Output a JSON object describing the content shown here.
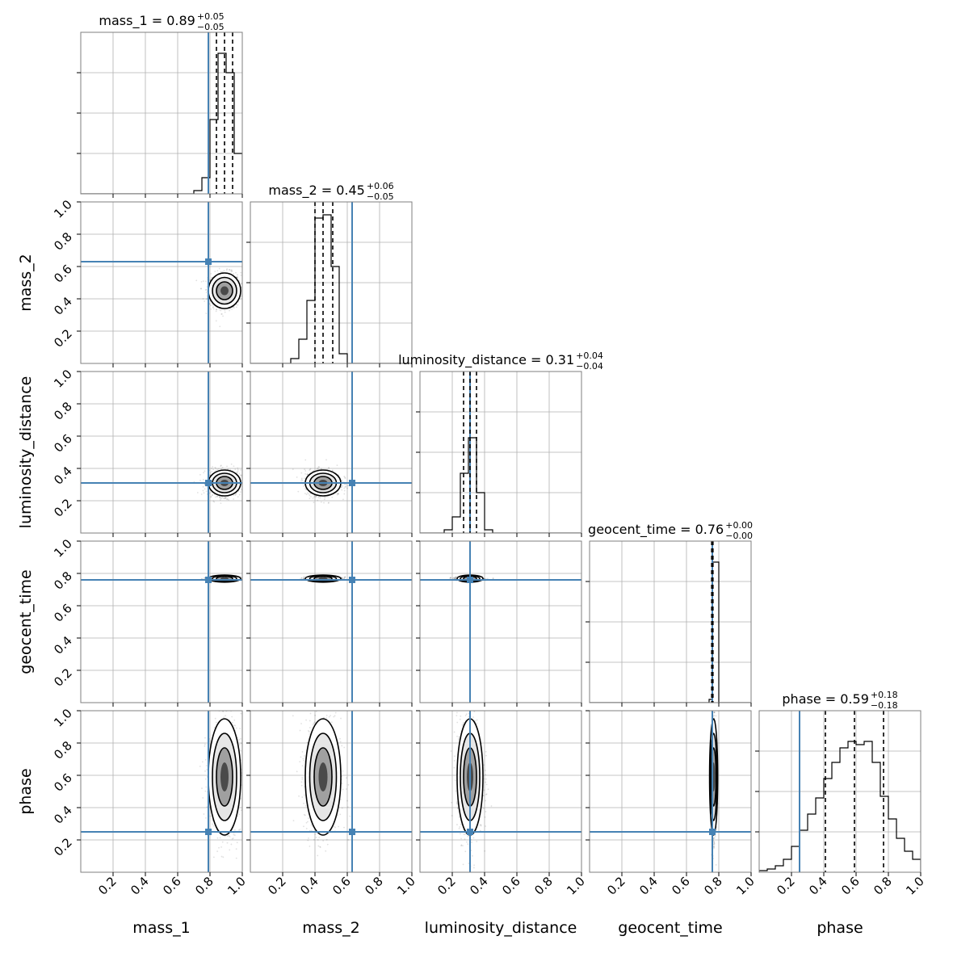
{
  "chart_data": {
    "type": "corner",
    "parameters": [
      "mass_1",
      "mass_2",
      "luminosity_distance",
      "geocent_time",
      "phase"
    ],
    "axis_range": [
      0,
      1
    ],
    "tick_values": [
      0.2,
      0.4,
      0.6,
      0.8,
      1.0
    ],
    "tick_labels": [
      "0.2",
      "0.4",
      "0.6",
      "0.8",
      "1.0"
    ],
    "grid": true,
    "truth_color": "#4682b4",
    "histogram_color": "#000000",
    "truths": {
      "mass_1": 0.79,
      "mass_2": 0.63,
      "luminosity_distance": 0.31,
      "geocent_time": 0.76,
      "phase": 0.25
    },
    "titles": [
      {
        "param": "mass_1",
        "label": "mass_1 = 0.89",
        "plus": "+0.05",
        "minus": "−0.05"
      },
      {
        "param": "mass_2",
        "label": "mass_2 = 0.45",
        "plus": "+0.06",
        "minus": "−0.05"
      },
      {
        "param": "luminosity_distance",
        "label": "luminosity_distance = 0.31",
        "plus": "+0.04",
        "minus": "−0.04"
      },
      {
        "param": "geocent_time",
        "label": "geocent_time = 0.76",
        "plus": "+0.00",
        "minus": "−0.00"
      },
      {
        "param": "phase",
        "label": "phase = 0.59",
        "plus": "+0.18",
        "minus": "−0.18"
      }
    ],
    "quantiles": {
      "mass_1": [
        0.84,
        0.89,
        0.94
      ],
      "mass_2": [
        0.4,
        0.45,
        0.51
      ],
      "luminosity_distance": [
        0.27,
        0.31,
        0.35
      ],
      "geocent_time": [
        0.756,
        0.76,
        0.764
      ],
      "phase": [
        0.41,
        0.59,
        0.77
      ]
    },
    "histograms": {
      "mass_1": {
        "edges": [
          0.7,
          0.75,
          0.8,
          0.85,
          0.9,
          0.95,
          1.0
        ],
        "values": [
          0.02,
          0.1,
          0.46,
          0.87,
          0.75,
          0.25
        ]
      },
      "mass_2": {
        "edges": [
          0.25,
          0.3,
          0.35,
          0.4,
          0.45,
          0.5,
          0.55,
          0.6
        ],
        "values": [
          0.03,
          0.15,
          0.39,
          0.9,
          0.92,
          0.6,
          0.06
        ]
      },
      "luminosity_distance": {
        "edges": [
          0.15,
          0.2,
          0.25,
          0.3,
          0.35,
          0.4,
          0.45
        ],
        "values": [
          0.02,
          0.1,
          0.37,
          0.59,
          0.25,
          0.02
        ]
      },
      "geocent_time": {
        "edges": [
          0.74,
          0.76,
          0.78,
          0.8
        ],
        "values": [
          0.02,
          0.87,
          0.87
        ]
      },
      "phase": {
        "edges": [
          0.0,
          0.05,
          0.1,
          0.15,
          0.2,
          0.25,
          0.3,
          0.35,
          0.4,
          0.45,
          0.5,
          0.55,
          0.6,
          0.65,
          0.7,
          0.75,
          0.8,
          0.85,
          0.9,
          0.95,
          1.0
        ],
        "values": [
          0.01,
          0.02,
          0.04,
          0.08,
          0.16,
          0.26,
          0.36,
          0.46,
          0.58,
          0.68,
          0.77,
          0.81,
          0.79,
          0.81,
          0.68,
          0.47,
          0.33,
          0.21,
          0.13,
          0.08
        ]
      }
    },
    "posterior_2d": {
      "mean": {
        "mass_1": 0.89,
        "mass_2": 0.45,
        "luminosity_distance": 0.31,
        "geocent_time": 0.768,
        "phase": 0.59
      },
      "spread": {
        "mass_1": 0.05,
        "mass_2": 0.055,
        "luminosity_distance": 0.04,
        "geocent_time": 0.006,
        "phase": 0.18
      }
    }
  }
}
